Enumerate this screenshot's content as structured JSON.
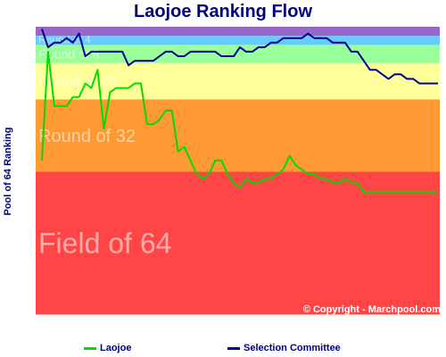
{
  "title": "Laojoe Ranking Flow",
  "ylabel": "Pool of 64 Ranking",
  "copyright": "© Copyright - Marchpool.com",
  "colors": {
    "band_field64": "#ff4545",
    "band_round32": "#ff9933",
    "band_sweet16": "#ffff99",
    "band_elite8": "#99ff99",
    "band_final4": "#66ccff",
    "band_champion": "#9966cc",
    "laojoe": "#00dd00",
    "committee": "#000099"
  },
  "chart_data": {
    "type": "line",
    "title": "Laojoe Ranking Flow",
    "xlabel": "",
    "ylabel": "Pool of 64 Ranking",
    "ylim": [
      64,
      1
    ],
    "grid": false,
    "legend_position": "bottom",
    "bands": [
      {
        "label": "Field of 64",
        "from": 32.5,
        "to": 64
      },
      {
        "label": "Round of 32",
        "from": 16.5,
        "to": 32.5
      },
      {
        "label": "Round of 16",
        "from": 8.5,
        "to": 16.5
      },
      {
        "label": "Round of 8",
        "from": 4.5,
        "to": 8.5
      },
      {
        "label": "Round of 4",
        "from": 2.5,
        "to": 4.5
      },
      {
        "label": "",
        "from": 0.5,
        "to": 2.5
      }
    ],
    "series": [
      {
        "name": "Laojoe",
        "color": "#00dd00",
        "values": [
          30,
          6,
          18,
          18,
          18,
          16,
          16,
          13,
          14,
          10,
          23,
          15,
          14,
          14,
          14,
          13,
          13,
          22,
          22,
          21,
          19,
          19,
          28,
          27,
          30,
          33,
          34,
          33,
          30,
          30,
          33,
          35,
          36,
          34,
          35,
          35,
          34,
          34,
          33,
          32,
          29,
          31,
          32,
          33,
          33,
          34,
          34,
          35,
          35,
          34,
          35,
          35,
          37,
          37,
          37,
          37,
          37,
          37,
          37,
          37,
          37,
          37,
          37,
          37,
          37
        ]
      },
      {
        "name": "Selection Committee",
        "color": "#000099",
        "values": [
          1,
          5,
          4,
          4,
          3,
          4,
          2,
          7,
          6,
          6,
          6,
          6,
          6,
          6,
          9,
          8,
          8,
          8,
          8,
          7,
          6,
          6,
          7,
          7,
          6,
          6,
          6,
          6,
          6,
          7,
          7,
          7,
          5,
          6,
          6,
          5,
          5,
          4,
          4,
          3,
          3,
          3,
          3,
          2,
          3,
          3,
          3,
          4,
          4,
          4,
          6,
          6,
          8,
          10,
          10,
          11,
          12,
          11,
          11,
          12,
          12,
          13,
          13,
          13,
          13
        ]
      }
    ]
  },
  "legend": {
    "laojoe_label": "Laojoe",
    "committee_label": "Selection Committee"
  }
}
